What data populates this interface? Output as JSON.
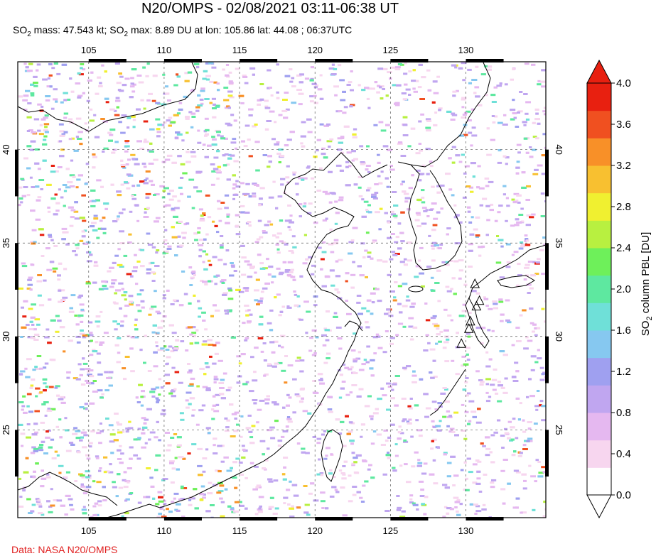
{
  "title": "N20/OMPS - 02/08/2021 03:11-06:38 UT",
  "subtitle": {
    "mass_label": "SO",
    "mass_sub": "2",
    "mass_text": " mass: 47.543 kt; SO",
    "max_sub": "2",
    "max_text": " max: 8.89 DU at lon: 105.86 lat: 44.08 ; 06:37UTC"
  },
  "credit": "Data: NASA N20/OMPS",
  "map": {
    "lon_ticks": [
      "105",
      "110",
      "115",
      "120",
      "125",
      "130"
    ],
    "lon_values": [
      105,
      110,
      115,
      120,
      125,
      130
    ],
    "lat_ticks": [
      "40",
      "35",
      "30",
      "25"
    ],
    "lat_values": [
      40,
      35,
      30,
      25
    ],
    "lon_range": [
      100.3,
      135.3
    ],
    "lat_range": [
      20.3,
      44.7
    ],
    "volcano_markers": [
      {
        "lon": 130.6,
        "lat": 32.8
      },
      {
        "lon": 130.9,
        "lat": 31.9
      },
      {
        "lon": 130.7,
        "lat": 31.6
      },
      {
        "lon": 130.3,
        "lat": 30.8
      },
      {
        "lon": 130.2,
        "lat": 30.4
      },
      {
        "lon": 129.7,
        "lat": 29.6
      }
    ]
  },
  "colorbar": {
    "label_main": "SO",
    "label_sub": "2",
    "label_rest": " column PBL [DU]",
    "ticks": [
      "4.0",
      "3.6",
      "3.2",
      "2.8",
      "2.4",
      "2.0",
      "1.6",
      "1.2",
      "0.8",
      "0.4",
      "0.0"
    ],
    "tick_values": [
      4.0,
      3.6,
      3.2,
      2.8,
      2.4,
      2.0,
      1.6,
      1.2,
      0.8,
      0.4,
      0.0
    ],
    "colors": [
      "#ffffff",
      "#f7d6ef",
      "#e5b8f0",
      "#c0a6f0",
      "#9fa0f0",
      "#86c8f0",
      "#6fe0d8",
      "#5ee8a0",
      "#6ef05a",
      "#b8f040",
      "#f0f030",
      "#f8c030",
      "#f89028",
      "#f05020",
      "#e82010"
    ]
  }
}
